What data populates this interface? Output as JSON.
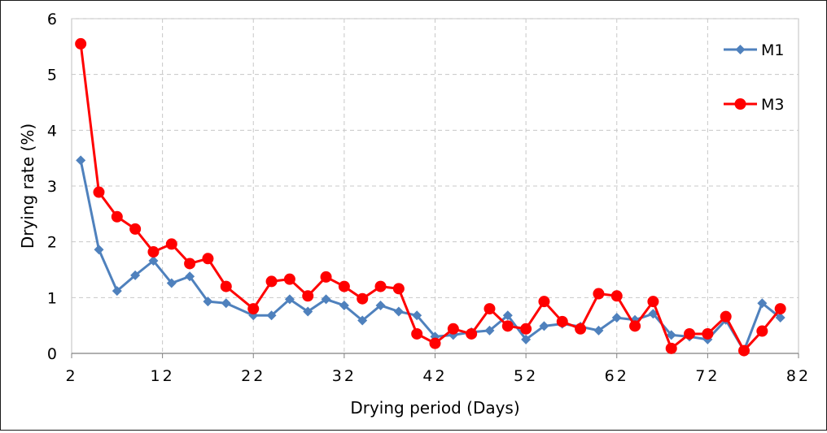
{
  "chart_data": {
    "type": "line",
    "xlabel": "Drying period (Days)",
    "ylabel": "Drying rate (%)",
    "xlim": [
      2,
      82
    ],
    "ylim": [
      0,
      6
    ],
    "xticks": [
      2,
      12,
      22,
      32,
      42,
      52,
      62,
      72,
      82
    ],
    "xtick_labels": [
      "2",
      "12",
      "22",
      "32",
      "42",
      "52",
      "62",
      "72",
      "82"
    ],
    "yticks": [
      0,
      1,
      2,
      3,
      4,
      5,
      6
    ],
    "ytick_labels": [
      "0",
      "1",
      "2",
      "3",
      "4",
      "5",
      "6"
    ],
    "grid": true,
    "legend_position": "right",
    "series": [
      {
        "name": "M1",
        "color": "#4f81bd",
        "marker": "diamond",
        "x": [
          3,
          5,
          7,
          9,
          11,
          13,
          15,
          17,
          19,
          22,
          24,
          26,
          28,
          30,
          32,
          34,
          36,
          38,
          40,
          42,
          44,
          46,
          48,
          50,
          52,
          54,
          56,
          58,
          60,
          62,
          64,
          66,
          68,
          70,
          72,
          74,
          76,
          78,
          80
        ],
        "values": [
          3.46,
          1.86,
          1.12,
          1.4,
          1.66,
          1.26,
          1.38,
          0.93,
          0.9,
          0.68,
          0.68,
          0.97,
          0.75,
          0.97,
          0.86,
          0.59,
          0.86,
          0.75,
          0.68,
          0.3,
          0.33,
          0.38,
          0.41,
          0.68,
          0.25,
          0.49,
          0.53,
          0.48,
          0.41,
          0.64,
          0.6,
          0.71,
          0.33,
          0.3,
          0.25,
          0.6,
          0.05,
          0.9,
          0.64
        ]
      },
      {
        "name": "M3",
        "color": "#ff0000",
        "marker": "circle",
        "x": [
          3,
          5,
          7,
          9,
          11,
          13,
          15,
          17,
          19,
          22,
          24,
          26,
          28,
          30,
          32,
          34,
          36,
          38,
          40,
          42,
          44,
          46,
          48,
          50,
          52,
          54,
          56,
          58,
          60,
          62,
          64,
          66,
          68,
          70,
          72,
          74,
          76,
          78,
          80
        ],
        "values": [
          5.55,
          2.89,
          2.45,
          2.23,
          1.82,
          1.96,
          1.61,
          1.7,
          1.2,
          0.8,
          1.29,
          1.33,
          1.03,
          1.37,
          1.2,
          0.98,
          1.2,
          1.16,
          0.35,
          0.18,
          0.44,
          0.35,
          0.8,
          0.49,
          0.44,
          0.93,
          0.57,
          0.44,
          1.07,
          1.03,
          0.49,
          0.93,
          0.09,
          0.35,
          0.35,
          0.66,
          0.05,
          0.4,
          0.8
        ]
      }
    ]
  }
}
